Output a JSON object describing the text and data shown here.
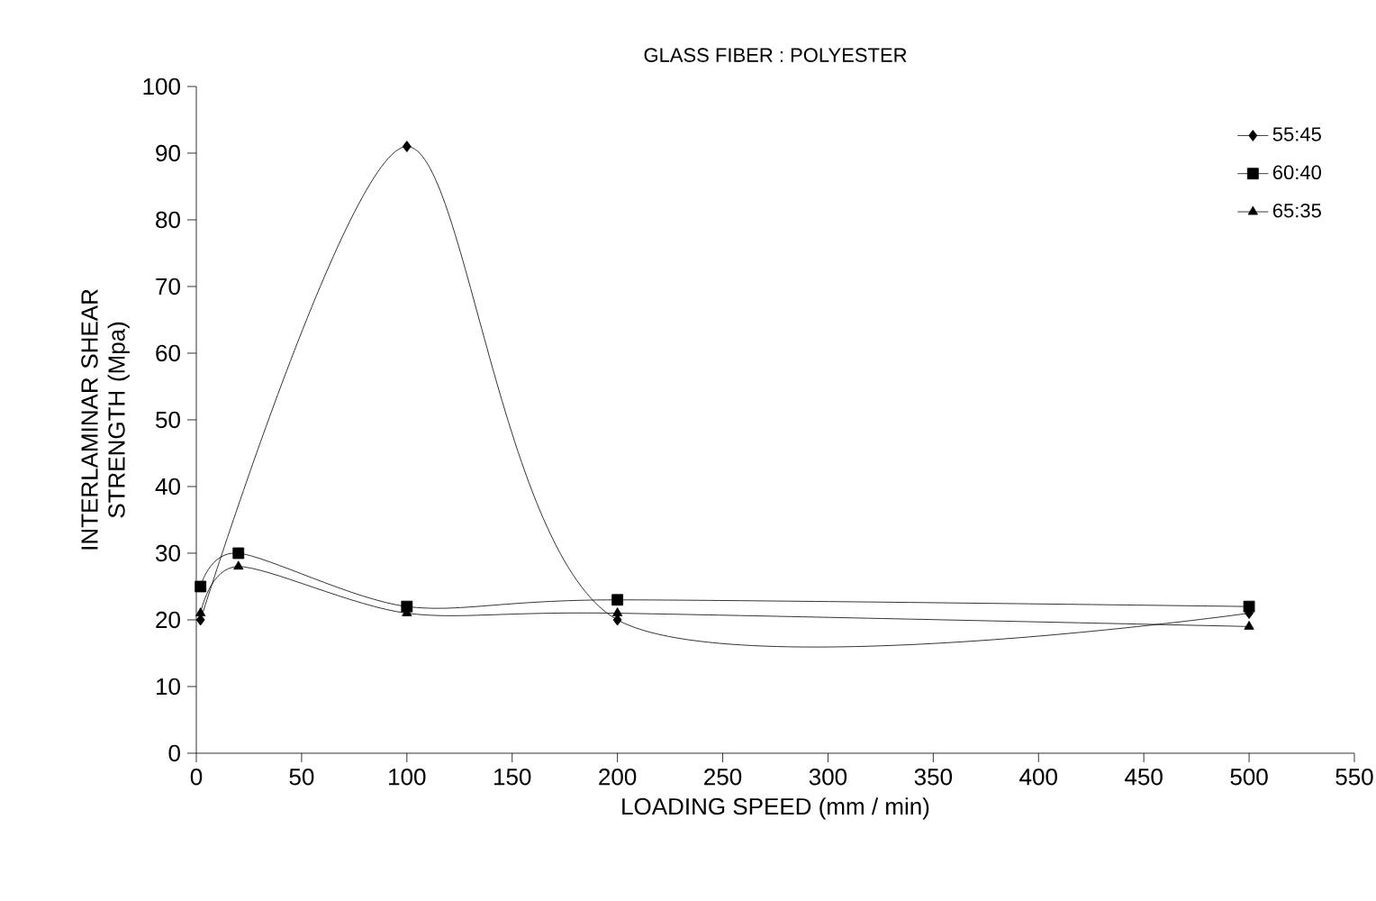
{
  "chart_data": {
    "type": "line",
    "title": "GLASS FIBER : POLYESTER",
    "xlabel": "LOADING SPEED (mm / min)",
    "ylabel": "INTERLAMINAR SHEAR STRENGTH (Mpa)",
    "x": [
      2,
      20,
      100,
      200,
      500
    ],
    "series": [
      {
        "name": "55:45",
        "color": "#000000",
        "marker": "diamond",
        "values": [
          20,
          null,
          91,
          20,
          21
        ]
      },
      {
        "name": "60:40",
        "color": "#000000",
        "marker": "square",
        "values": [
          25,
          30,
          22,
          23,
          22
        ]
      },
      {
        "name": "65:35",
        "color": "#000000",
        "marker": "triangle",
        "values": [
          21,
          28,
          21,
          21,
          19
        ]
      }
    ],
    "xlim": [
      0,
      550
    ],
    "xticks": [
      0,
      50,
      100,
      150,
      200,
      250,
      300,
      350,
      400,
      450,
      500,
      550
    ],
    "ylim": [
      0,
      100
    ],
    "yticks": [
      0,
      10,
      20,
      30,
      40,
      50,
      60,
      70,
      80,
      90,
      100
    ],
    "grid": false,
    "legend": "top right",
    "line_style": "solid"
  }
}
